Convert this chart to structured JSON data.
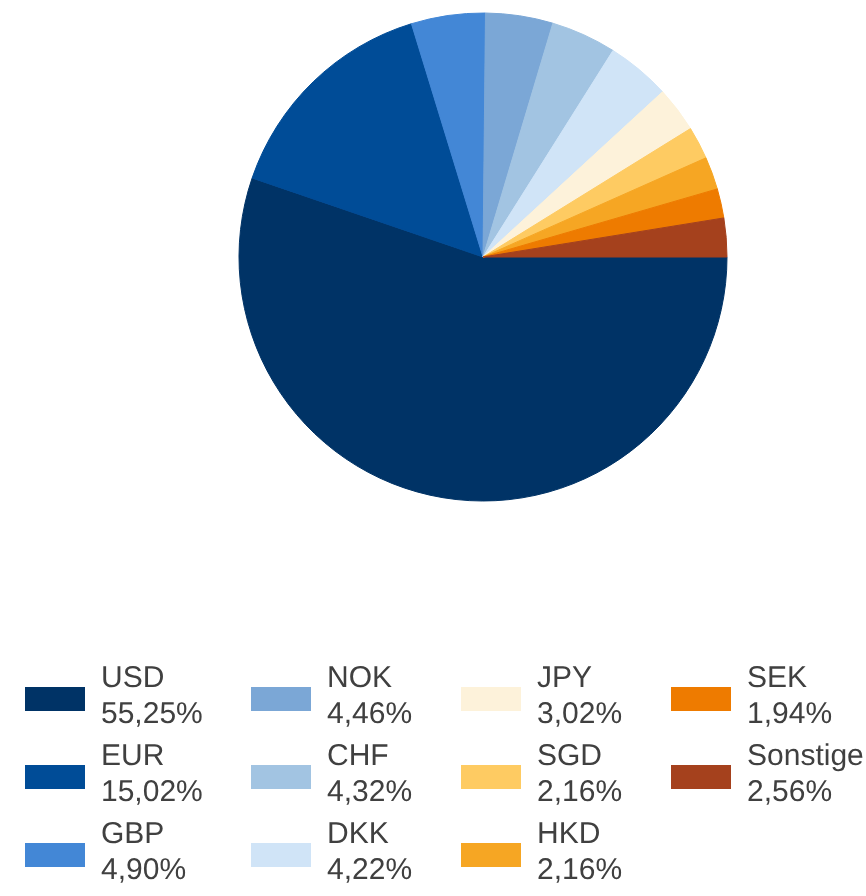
{
  "chart_data": {
    "type": "pie",
    "categories": [
      "USD",
      "EUR",
      "GBP",
      "NOK",
      "CHF",
      "DKK",
      "JPY",
      "SGD",
      "HKD",
      "SEK",
      "Sonstige"
    ],
    "values": [
      55.25,
      15.02,
      4.9,
      4.46,
      4.32,
      4.22,
      3.02,
      2.16,
      2.16,
      1.94,
      2.56
    ],
    "value_labels": [
      "55,25%",
      "15,02%",
      "4,90%",
      "4,46%",
      "4,32%",
      "4,22%",
      "3,02%",
      "2,16%",
      "2,16%",
      "1,94%",
      "2,56%"
    ],
    "colors": [
      "#003366",
      "#004c97",
      "#4387d6",
      "#7ba7d6",
      "#a2c4e2",
      "#d0e4f7",
      "#fdf2da",
      "#fecb62",
      "#f6a623",
      "#ee7b00",
      "#a5411d"
    ],
    "legend": "bottom"
  }
}
